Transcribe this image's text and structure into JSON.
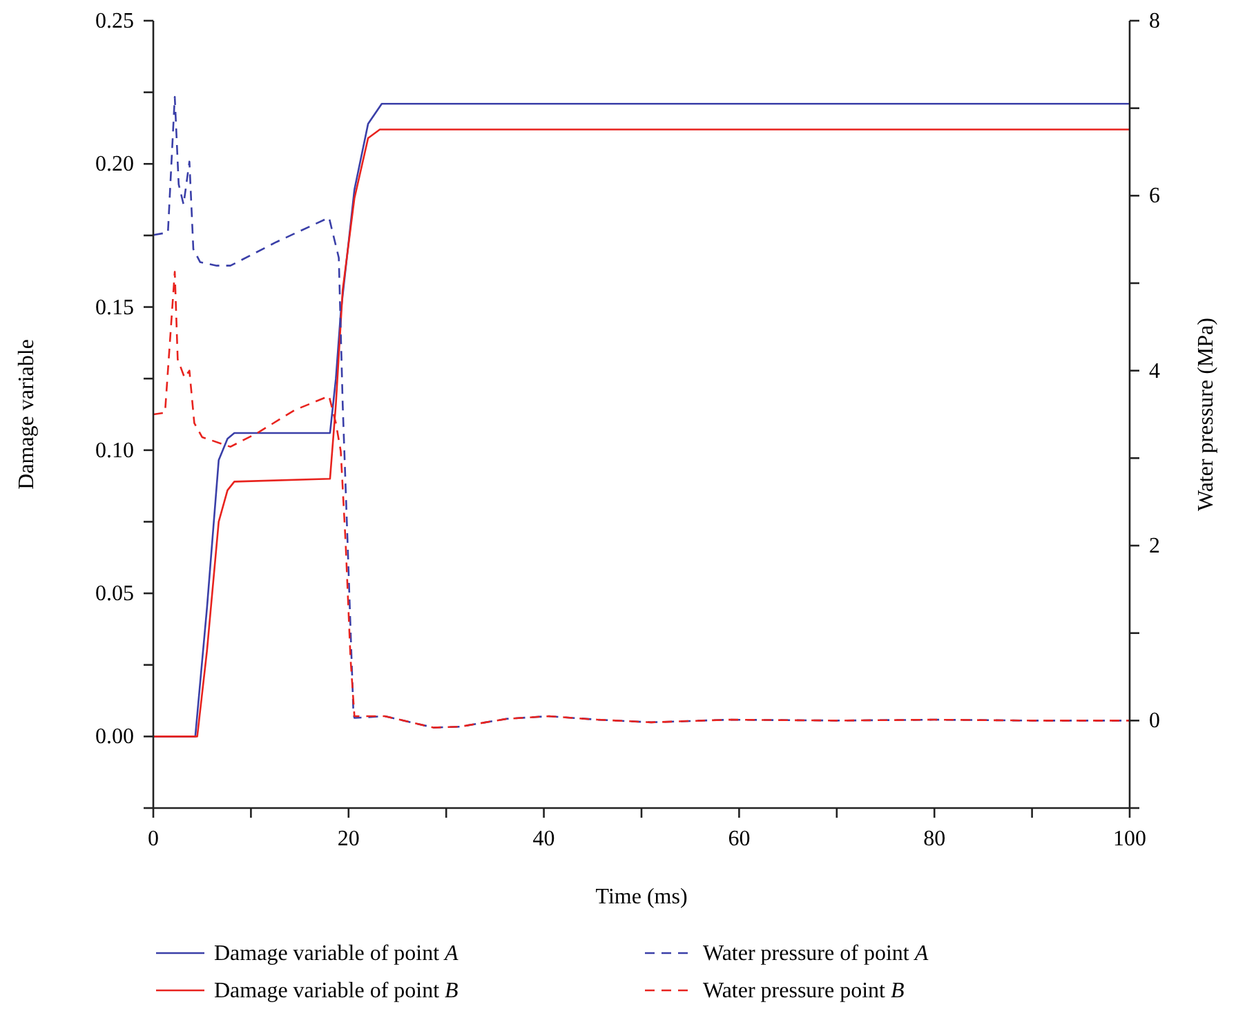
{
  "chart_data": {
    "type": "line",
    "xlabel": "Time (ms)",
    "ylabel": "Damage variable",
    "y2label": "Water pressure (MPa)",
    "xlim": [
      0,
      100
    ],
    "xticks": [
      0,
      {
        "value": 10,
        "label": null
      },
      20,
      {
        "value": 30,
        "label": null
      },
      40,
      {
        "value": 50,
        "label": null
      },
      60,
      {
        "value": 70,
        "label": null
      },
      80,
      {
        "value": 90,
        "label": null
      },
      100
    ],
    "ylim": [
      -0.025,
      0.25
    ],
    "yticks": [
      {
        "value": -0.025,
        "label": null
      },
      {
        "value": 0,
        "label": "0.00"
      },
      {
        "value": 0.025,
        "label": null
      },
      {
        "value": 0.05,
        "label": "0.05"
      },
      {
        "value": 0.075,
        "label": null
      },
      {
        "value": 0.1,
        "label": "0.10"
      },
      {
        "value": 0.125,
        "label": null
      },
      {
        "value": 0.15,
        "label": "0.15"
      },
      {
        "value": 0.175,
        "label": null
      },
      {
        "value": 0.2,
        "label": "0.20"
      },
      {
        "value": 0.225,
        "label": null
      },
      {
        "value": 0.25,
        "label": "0.25"
      }
    ],
    "y2lim": [
      -1,
      8
    ],
    "y2ticks": [
      {
        "value": -1,
        "label": null
      },
      0,
      {
        "value": 1,
        "label": null
      },
      2,
      {
        "value": 3,
        "label": null
      },
      4,
      {
        "value": 5,
        "label": null
      },
      6,
      {
        "value": 7,
        "label": null
      },
      8
    ],
    "legend": "bottom",
    "grid": false,
    "series": [
      {
        "name": "Damage variable of point A",
        "color": "#3a3fa8",
        "line_style": "solid",
        "x": [
          0,
          4.3,
          5.5,
          6.7,
          7.6,
          8.3,
          18.1,
          18.7,
          19.2,
          20.6,
          22.0,
          23.4,
          24.5,
          100
        ],
        "values": [
          0,
          0,
          0.045,
          0.0965,
          0.104,
          0.106,
          0.106,
          0.125,
          0.148,
          0.191,
          0.214,
          0.221,
          0.221,
          0.221
        ]
      },
      {
        "name": "Damage variable of point B",
        "color": "#e8231e",
        "line_style": "solid",
        "x": [
          0,
          4.5,
          5.5,
          6.7,
          7.6,
          8.3,
          18.1,
          18.7,
          19.4,
          20.6,
          22.0,
          23.2,
          24.5,
          100
        ],
        "values": [
          0,
          0,
          0.03,
          0.075,
          0.086,
          0.089,
          0.09,
          0.116,
          0.156,
          0.188,
          0.209,
          0.212,
          0.212,
          0.212
        ]
      },
      {
        "name": "Water pressure of point A",
        "color": "#3a3fa8",
        "axis": "y2",
        "line_style": "dashed",
        "x": [
          0,
          1.5,
          2.2,
          2.6,
          3.1,
          3.7,
          4.1,
          4.8,
          6.5,
          7.9,
          12.6,
          18.0,
          19.0,
          19.4,
          19.9,
          20.5,
          20.6,
          23.7,
          28.7,
          31.4,
          36.2,
          40.5,
          45.5,
          51,
          59,
          70,
          80,
          90,
          100
        ],
        "values": [
          5.55,
          5.58,
          7.13,
          6.13,
          5.9,
          6.39,
          5.39,
          5.24,
          5.2,
          5.2,
          5.47,
          5.75,
          5.29,
          3.61,
          2.03,
          0.08,
          0.03,
          0.05,
          -0.08,
          -0.07,
          0.02,
          0.05,
          0.01,
          -0.02,
          0.01,
          0.0,
          0.01,
          0.0,
          0.0
        ]
      },
      {
        "name": "Water pressure point B",
        "color": "#e8231e",
        "axis": "y2",
        "line_style": "dashed",
        "x": [
          0,
          1.2,
          2.2,
          2.5,
          3.2,
          3.7,
          4.2,
          5.0,
          7.9,
          10.7,
          14.5,
          18.0,
          18.7,
          19.2,
          19.7,
          20.2,
          20.6,
          23.7,
          28.7,
          31.4,
          36.2,
          40.5,
          45.5,
          51,
          59,
          70,
          80,
          90,
          100
        ],
        "values": [
          3.5,
          3.52,
          5.13,
          4.13,
          3.92,
          4.0,
          3.4,
          3.24,
          3.13,
          3.29,
          3.55,
          3.71,
          3.4,
          3.08,
          2.03,
          0.71,
          0.05,
          0.05,
          -0.08,
          -0.07,
          0.02,
          0.05,
          0.01,
          -0.02,
          0.01,
          0.0,
          0.01,
          0.0,
          0.0
        ]
      }
    ]
  }
}
